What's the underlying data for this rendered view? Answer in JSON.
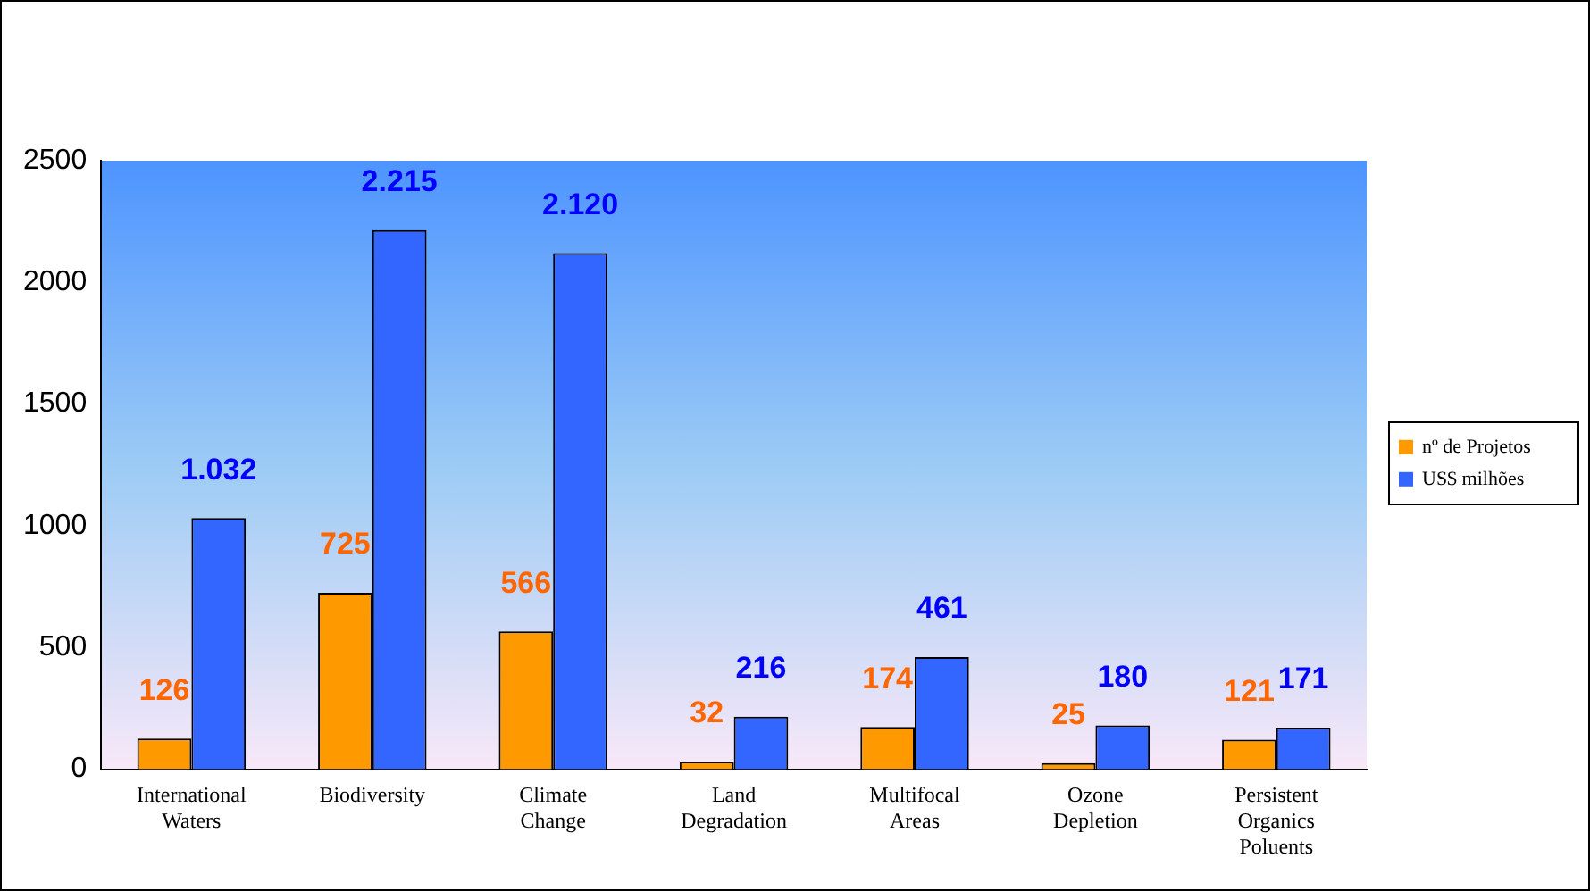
{
  "chart_data": {
    "type": "bar",
    "categories": [
      "International Waters",
      "Biodiversity",
      "Climate Change",
      "Land Degradation",
      "Multifocal Areas",
      "Ozone Depletion",
      "Persistent Organics Poluents"
    ],
    "series": [
      {
        "name": "nº de Projetos",
        "color": "#ff9900",
        "values": [
          126,
          725,
          566,
          32,
          174,
          25,
          121
        ],
        "value_labels": [
          "126",
          "725",
          "566",
          "32",
          "174",
          "25",
          "121"
        ]
      },
      {
        "name": "US$ milhões",
        "color": "#3366ff",
        "values": [
          1032,
          2215,
          2120,
          216,
          461,
          180,
          171
        ],
        "value_labels": [
          "1.032",
          "2.215",
          "2.120",
          "216",
          "461",
          "180",
          "171"
        ]
      }
    ],
    "ylim": [
      0,
      2500
    ],
    "yticks": [
      0,
      500,
      1000,
      1500,
      2000,
      2500
    ],
    "grid": false,
    "legend": "right"
  }
}
